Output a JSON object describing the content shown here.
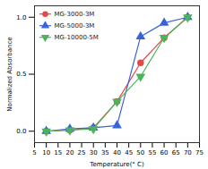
{
  "chart_data": {
    "type": "line",
    "x_label": "Temperature(° C)",
    "y_label": "Normalized Absorbance",
    "x": [
      10,
      20,
      30,
      40,
      50,
      60,
      70
    ],
    "series": [
      {
        "name": "MG-3000-3M",
        "color": "#e8474a",
        "marker": "circle",
        "values": [
          0,
          0.01,
          0.03,
          0.26,
          0.6,
          0.82,
          1.0
        ]
      },
      {
        "name": "MG-5000-3M",
        "color": "#3a63d8",
        "marker": "triangle",
        "values": [
          0,
          0.02,
          0.03,
          0.05,
          0.83,
          0.95,
          1.0
        ]
      },
      {
        "name": "MG-10000-5M",
        "color": "#4cb35c",
        "marker": "triangle-down",
        "values": [
          0,
          0.01,
          0.02,
          0.26,
          0.48,
          0.82,
          1.0
        ]
      }
    ],
    "xlim": [
      5,
      75
    ],
    "xticks": [
      5,
      10,
      15,
      20,
      25,
      30,
      35,
      40,
      45,
      50,
      55,
      60,
      65,
      70,
      75
    ],
    "ylim": [
      -0.1,
      1.1
    ],
    "yticks": [
      {
        "value": 0,
        "label": "0.0"
      },
      {
        "value": 0.5,
        "label": "0.5"
      },
      {
        "value": 1.0,
        "label": "1.0"
      }
    ],
    "grid": false,
    "legend": "top-left"
  }
}
